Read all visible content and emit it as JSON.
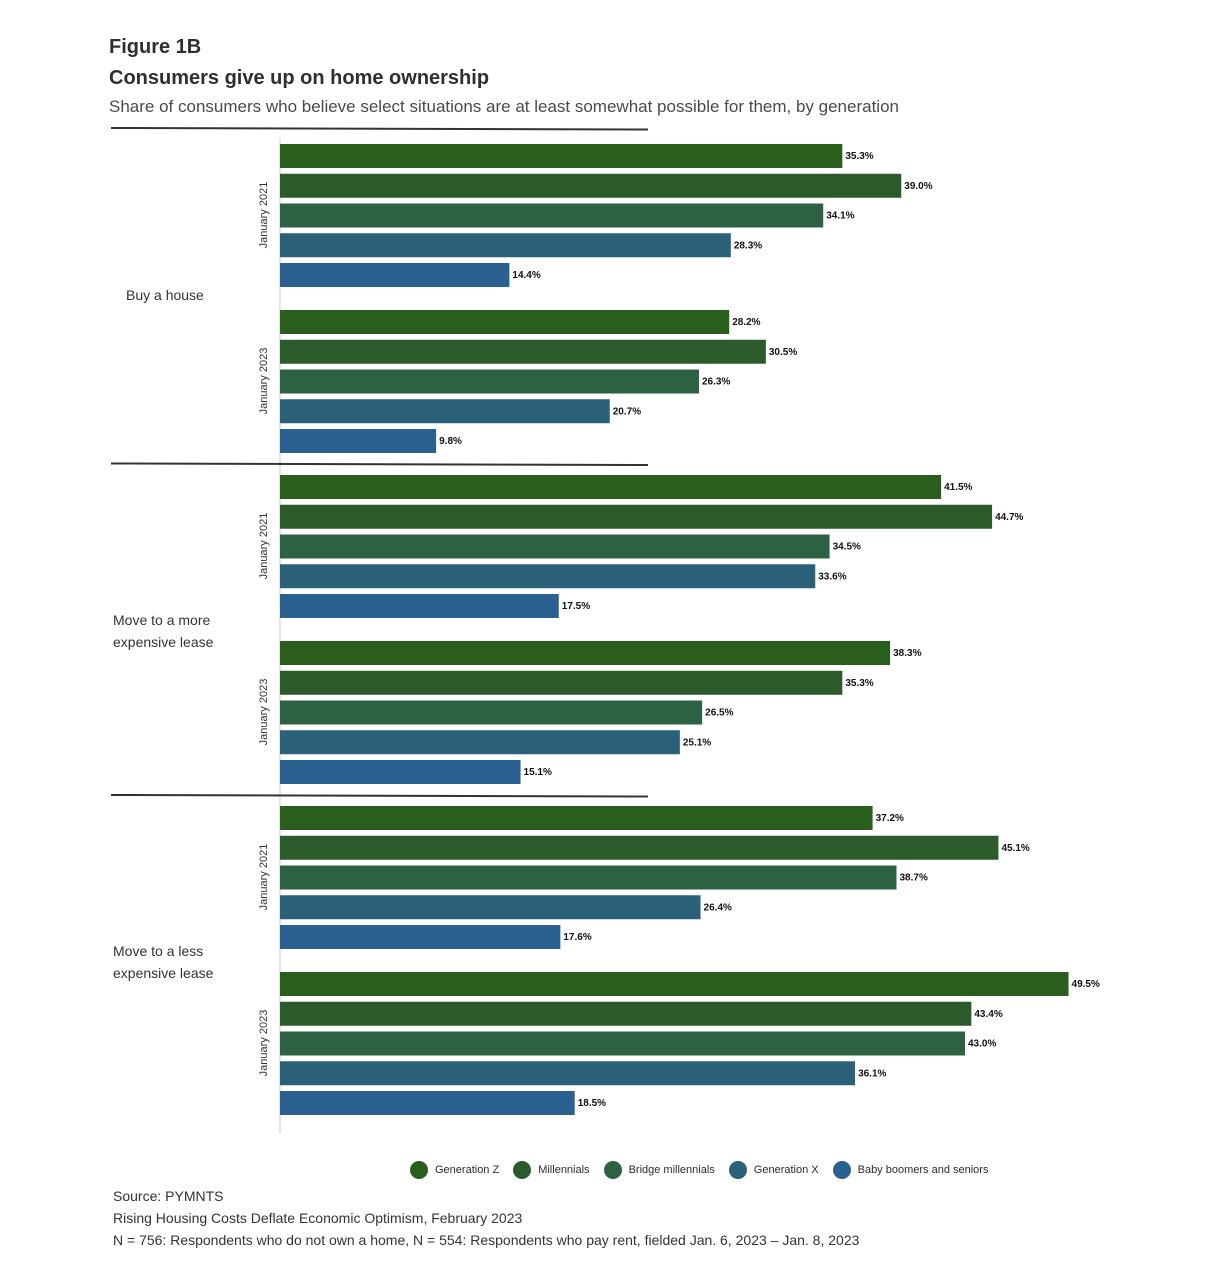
{
  "figure_label": "Figure 1B",
  "title": "Consumers give up on home ownership",
  "subtitle": "Share of consumers who believe select situations are at least somewhat possible for them, by generation",
  "colors": {
    "Generation Z": "#2a5e1c",
    "Millennials": "#2b5b2b",
    "Bridge millennials": "#2c6142",
    "Generation X": "#2a6179",
    "Baby boomers and seniors": "#2a6191"
  },
  "chart_data": {
    "type": "bar",
    "orientation": "horizontal",
    "series_names": [
      "Generation Z",
      "Millennials",
      "Bridge millennials",
      "Generation X",
      "Baby boomers and seniors"
    ],
    "groups": [
      {
        "category": "Buy a house",
        "periods": [
          {
            "period": "January 2021",
            "values": [
              35.3,
              39.0,
              34.1,
              28.3,
              14.4
            ],
            "labels": [
              "35.3%",
              "39.0%",
              "34.1%",
              "28.3%",
              "14.4%"
            ]
          },
          {
            "period": "January 2023",
            "values": [
              28.2,
              30.5,
              26.3,
              20.7,
              9.8
            ],
            "labels": [
              "28.2%",
              "30.5%",
              "26.3%",
              "20.7%",
              "9.8%"
            ]
          }
        ]
      },
      {
        "category": "Move to a more expensive lease",
        "periods": [
          {
            "period": "January 2021",
            "values": [
              41.5,
              44.7,
              34.5,
              33.6,
              17.5
            ],
            "labels": [
              "41.5%",
              "44.7%",
              "34.5%",
              "33.6%",
              "17.5%"
            ]
          },
          {
            "period": "January 2023",
            "values": [
              38.3,
              35.3,
              26.5,
              25.1,
              15.1
            ],
            "labels": [
              "38.3%",
              "35.3%",
              "26.5%",
              "25.1%",
              "15.1%"
            ]
          }
        ]
      },
      {
        "category": "Move to a less expensive lease",
        "periods": [
          {
            "period": "January 2021",
            "values": [
              37.2,
              45.1,
              38.7,
              26.4,
              17.6
            ],
            "labels": [
              "37.2%",
              "45.1%",
              "38.7%",
              "26.4%",
              "17.6%"
            ]
          },
          {
            "period": "January 2023",
            "values": [
              49.5,
              43.4,
              43.0,
              36.1,
              18.5
            ],
            "labels": [
              "49.5%",
              "43.4%",
              "43.0%",
              "36.1%",
              "18.5%"
            ]
          }
        ]
      }
    ],
    "legend_placement": "bottom",
    "grid": false
  },
  "legend": {
    "items": [
      "Generation Z",
      "Millennials",
      "Bridge millennials",
      "Generation X",
      "Baby boomers and seniors"
    ]
  },
  "notes": {
    "source": "Source: PYMNTS",
    "report": "Rising Housing Costs Deflate Economic Optimism, February 2023",
    "sample": "N = 756: Respondents who do not own a home, N = 554: Respondents who pay rent, fielded Jan. 6, 2023 – Jan. 8, 2023"
  }
}
